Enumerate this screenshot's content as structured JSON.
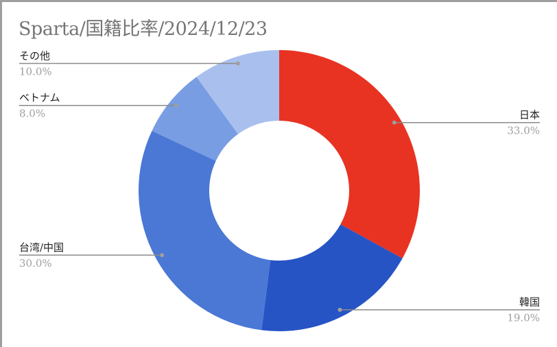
{
  "chart_data": {
    "type": "pie",
    "donut": true,
    "title": "Sparta/国籍比率/2024/12/23",
    "categories": [
      "日本",
      "韓国",
      "台湾/中国",
      "ベトナム",
      "その他"
    ],
    "values": [
      33.0,
      19.0,
      30.0,
      8.0,
      10.0
    ],
    "value_labels": [
      "33.0%",
      "19.0%",
      "30.0%",
      "8.0%",
      "10.0%"
    ],
    "colors": [
      "#e83323",
      "#2754c5",
      "#4a78d4",
      "#789de3",
      "#a9c0ee"
    ],
    "legend": "none"
  }
}
